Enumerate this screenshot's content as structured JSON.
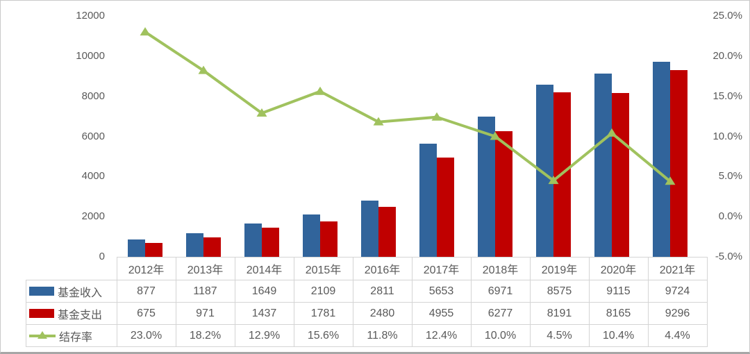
{
  "chart_data": {
    "type": "bar+line",
    "categories": [
      "2012年",
      "2013年",
      "2014年",
      "2015年",
      "2016年",
      "2017年",
      "2018年",
      "2019年",
      "2020年",
      "2021年"
    ],
    "series": [
      {
        "name": "基金收入",
        "chart": "bar",
        "axis": "left",
        "color": "#31649B",
        "values": [
          877,
          1187,
          1649,
          2109,
          2811,
          5653,
          6971,
          8575,
          9115,
          9724
        ],
        "display": [
          "877",
          "1187",
          "1649",
          "2109",
          "2811",
          "5653",
          "6971",
          "8575",
          "9115",
          "9724"
        ]
      },
      {
        "name": "基金支出",
        "chart": "bar",
        "axis": "left",
        "color": "#C00000",
        "values": [
          675,
          971,
          1437,
          1781,
          2480,
          4955,
          6277,
          8191,
          8165,
          9296
        ],
        "display": [
          "675",
          "971",
          "1437",
          "1781",
          "2480",
          "4955",
          "6277",
          "8191",
          "8165",
          "9296"
        ]
      },
      {
        "name": "结存率",
        "chart": "line",
        "axis": "right",
        "color": "#A0C25E",
        "values": [
          23.0,
          18.2,
          12.9,
          15.6,
          11.8,
          12.4,
          10.0,
          4.5,
          10.4,
          4.4
        ],
        "display": [
          "23.0%",
          "18.2%",
          "12.9%",
          "15.6%",
          "11.8%",
          "12.4%",
          "10.0%",
          "4.5%",
          "10.4%",
          "4.4%"
        ]
      }
    ],
    "left_axis": {
      "min": 0,
      "max": 12000,
      "tick_labels": [
        "12000",
        "10000",
        "8000",
        "6000",
        "4000",
        "2000",
        "0"
      ]
    },
    "right_axis": {
      "min": -5,
      "max": 25,
      "tick_labels": [
        "25.0%",
        "20.0%",
        "15.0%",
        "10.0%",
        "5.0%",
        "0.0%",
        "-5.0%"
      ]
    },
    "grid": false,
    "legend_position": "table-left",
    "text_color": "#595959",
    "border_color": "#D4D4D4"
  }
}
